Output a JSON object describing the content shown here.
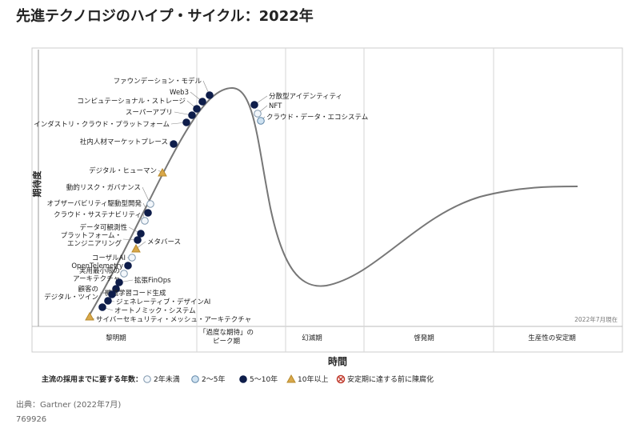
{
  "title": "先進テクノロジのハイプ・サイクル：2022年",
  "y_axis_label": "期待度",
  "x_axis_label": "時間",
  "as_of": "2022年7月現在",
  "phases": [
    [
      "黎明期"
    ],
    [
      "「過度な期待」の",
      "ピーク期"
    ],
    [
      "幻滅期"
    ],
    [
      "啓発期"
    ],
    [
      "生産性の安定期"
    ]
  ],
  "nodes": [
    {
      "label": [
        "ファウンデーション・モデル"
      ]
    },
    {
      "label": [
        "Web3"
      ]
    },
    {
      "label": [
        "コンピュテーショナル・ストレージ"
      ]
    },
    {
      "label": [
        "スーパーアプリ"
      ]
    },
    {
      "label": [
        "インダストリ・クラウド・プラットフォーム"
      ]
    },
    {
      "label": [
        "社内人材マーケットプレース"
      ]
    },
    {
      "label": [
        "デジタル・ヒューマン"
      ]
    },
    {
      "label": [
        "動的リスク・ガバナンス"
      ]
    },
    {
      "label": [
        "オブザーバビリティ駆動型開発"
      ]
    },
    {
      "label": [
        "クラウド・サステナビリティ"
      ]
    },
    {
      "label": [
        "データ可観測性"
      ]
    },
    {
      "label": [
        "プラットフォーム・",
        "エンジニアリング"
      ]
    },
    {
      "label": [
        "メタバース"
      ]
    },
    {
      "label": [
        "コーザルAI"
      ]
    },
    {
      "label": [
        "OpenTelemetry"
      ]
    },
    {
      "label": [
        "実用最小限の",
        "アーキテクチャ"
      ]
    },
    {
      "label": [
        "拡張FinOps"
      ]
    },
    {
      "label": [
        "機械学習コード生成"
      ]
    },
    {
      "label": [
        "顧客の",
        "デジタル・ツイン"
      ]
    },
    {
      "label": [
        "ジェネレーティブ・デザインAI"
      ]
    },
    {
      "label": [
        "オートノミック・システム"
      ]
    },
    {
      "label": [
        "サイバーセキュリティ・メッシュ・アーキテクチャ"
      ]
    },
    {
      "label": [
        "分散型アイデンティティ"
      ]
    },
    {
      "label": [
        "NFT"
      ]
    },
    {
      "label": [
        "クラウド・データ・エコシステム"
      ]
    }
  ],
  "legend": {
    "title": "主流の採用までに要する年数：",
    "items": [
      "2年未満",
      "2～5年",
      "5～10年",
      "10年以上",
      "安定期に達する前に陳腐化"
    ]
  },
  "source": "出典：Gartner (2022年7月)",
  "doc_id": "769926"
}
